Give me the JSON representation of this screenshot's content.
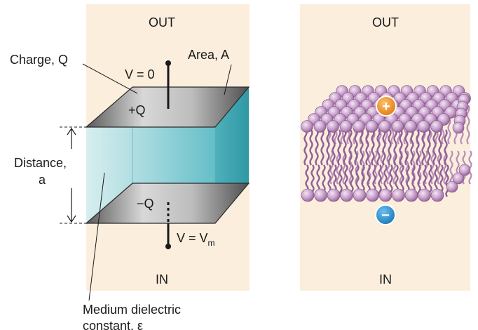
{
  "capacitor_panel": {
    "out_label": "OUT",
    "in_label": "IN",
    "charge_label": "Charge, Q",
    "area_label": "Area, A",
    "top_voltage_label": "V = 0",
    "plus_q_label": "+Q",
    "minus_q_label": "−Q",
    "bottom_voltage_prefix": "V = V",
    "bottom_voltage_sub": "m",
    "distance_label_line1": "Distance,",
    "distance_label_line2": "a",
    "medium_label_line1": "Medium dielectric",
    "medium_label_line2": "constant, ε"
  },
  "membrane_panel": {
    "out_label": "OUT",
    "in_label": "IN",
    "positive_ion_symbol": "+",
    "negative_ion_symbol": "−"
  },
  "colors": {
    "panel_background": "#fbeedd",
    "dielectric": "#8fd1d8",
    "plate": "#9a9a9a",
    "lipid_head": "#c9a1cc",
    "lipid_tail": "#9a6aa0",
    "cation": "#f08a1c",
    "anion": "#1f86c8"
  }
}
